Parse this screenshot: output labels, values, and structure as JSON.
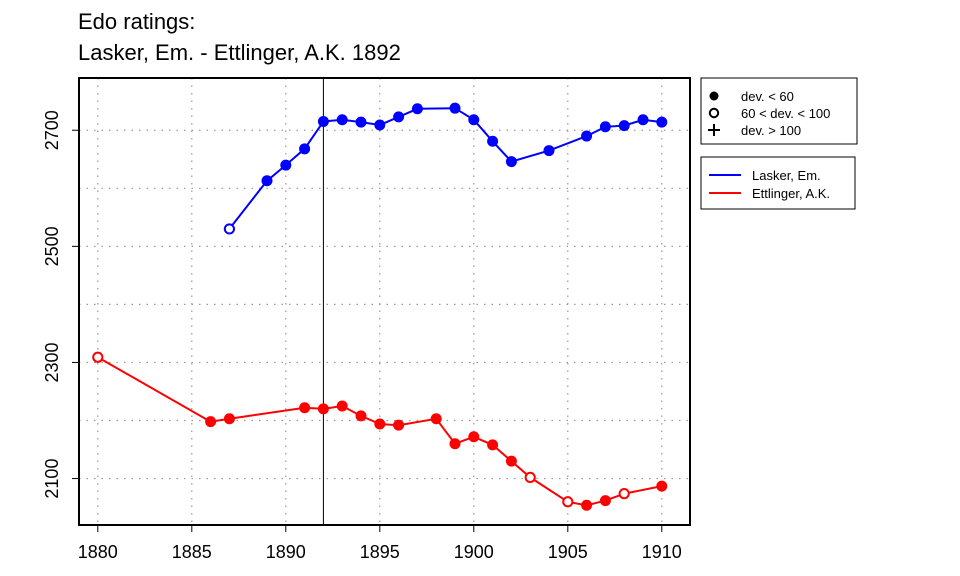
{
  "chart_data": {
    "type": "line",
    "title": "Edo ratings:",
    "subtitle": "Lasker, Em. - Ettlinger, A.K. 1892",
    "xlabel": "",
    "ylabel": "",
    "xlim": [
      1879,
      1911.5
    ],
    "ylim": [
      2020,
      2790
    ],
    "x_ticks": [
      1880,
      1885,
      1890,
      1895,
      1900,
      1905,
      1910
    ],
    "y_ticks": [
      2100,
      2300,
      2500,
      2700
    ],
    "grid": true,
    "marker_line_year": 1892,
    "legend_placement": "right, outside plot",
    "deviation_legend": [
      {
        "symbol": "filled-circle",
        "label": "dev. < 60"
      },
      {
        "symbol": "open-circle",
        "label": "60 < dev. < 100"
      },
      {
        "symbol": "plus",
        "label": "dev. > 100"
      }
    ],
    "series": [
      {
        "name": "Lasker, Em.",
        "color": "#0000ff",
        "points": [
          {
            "x": 1887,
            "y": 2530,
            "marker": "open"
          },
          {
            "x": 1889,
            "y": 2613,
            "marker": "filled"
          },
          {
            "x": 1890,
            "y": 2640,
            "marker": "filled"
          },
          {
            "x": 1891,
            "y": 2668,
            "marker": "filled"
          },
          {
            "x": 1892,
            "y": 2715,
            "marker": "filled"
          },
          {
            "x": 1893,
            "y": 2718,
            "marker": "filled"
          },
          {
            "x": 1894,
            "y": 2714,
            "marker": "filled"
          },
          {
            "x": 1895,
            "y": 2709,
            "marker": "filled"
          },
          {
            "x": 1896,
            "y": 2723,
            "marker": "filled"
          },
          {
            "x": 1897,
            "y": 2737,
            "marker": "filled"
          },
          {
            "x": 1899,
            "y": 2738,
            "marker": "filled"
          },
          {
            "x": 1900,
            "y": 2718,
            "marker": "filled"
          },
          {
            "x": 1901,
            "y": 2681,
            "marker": "filled"
          },
          {
            "x": 1902,
            "y": 2646,
            "marker": "filled"
          },
          {
            "x": 1904,
            "y": 2665,
            "marker": "filled"
          },
          {
            "x": 1906,
            "y": 2690,
            "marker": "filled"
          },
          {
            "x": 1907,
            "y": 2706,
            "marker": "filled"
          },
          {
            "x": 1908,
            "y": 2708,
            "marker": "filled"
          },
          {
            "x": 1909,
            "y": 2718,
            "marker": "filled"
          },
          {
            "x": 1910,
            "y": 2714,
            "marker": "filled"
          }
        ]
      },
      {
        "name": "Ettlinger, A.K.",
        "color": "#ff0000",
        "points": [
          {
            "x": 1880,
            "y": 2309,
            "marker": "open"
          },
          {
            "x": 1886,
            "y": 2198,
            "marker": "filled"
          },
          {
            "x": 1887,
            "y": 2203,
            "marker": "filled"
          },
          {
            "x": 1891,
            "y": 2222,
            "marker": "filled"
          },
          {
            "x": 1892,
            "y": 2220,
            "marker": "filled"
          },
          {
            "x": 1893,
            "y": 2225,
            "marker": "filled"
          },
          {
            "x": 1894,
            "y": 2208,
            "marker": "filled"
          },
          {
            "x": 1895,
            "y": 2194,
            "marker": "filled"
          },
          {
            "x": 1896,
            "y": 2192,
            "marker": "filled"
          },
          {
            "x": 1898,
            "y": 2203,
            "marker": "filled"
          },
          {
            "x": 1899,
            "y": 2160,
            "marker": "filled"
          },
          {
            "x": 1900,
            "y": 2172,
            "marker": "filled"
          },
          {
            "x": 1901,
            "y": 2158,
            "marker": "filled"
          },
          {
            "x": 1902,
            "y": 2130,
            "marker": "filled"
          },
          {
            "x": 1903,
            "y": 2102,
            "marker": "open"
          },
          {
            "x": 1905,
            "y": 2060,
            "marker": "open"
          },
          {
            "x": 1906,
            "y": 2054,
            "marker": "filled"
          },
          {
            "x": 1907,
            "y": 2062,
            "marker": "filled"
          },
          {
            "x": 1908,
            "y": 2074,
            "marker": "open"
          },
          {
            "x": 1910,
            "y": 2087,
            "marker": "filled"
          }
        ]
      }
    ]
  }
}
